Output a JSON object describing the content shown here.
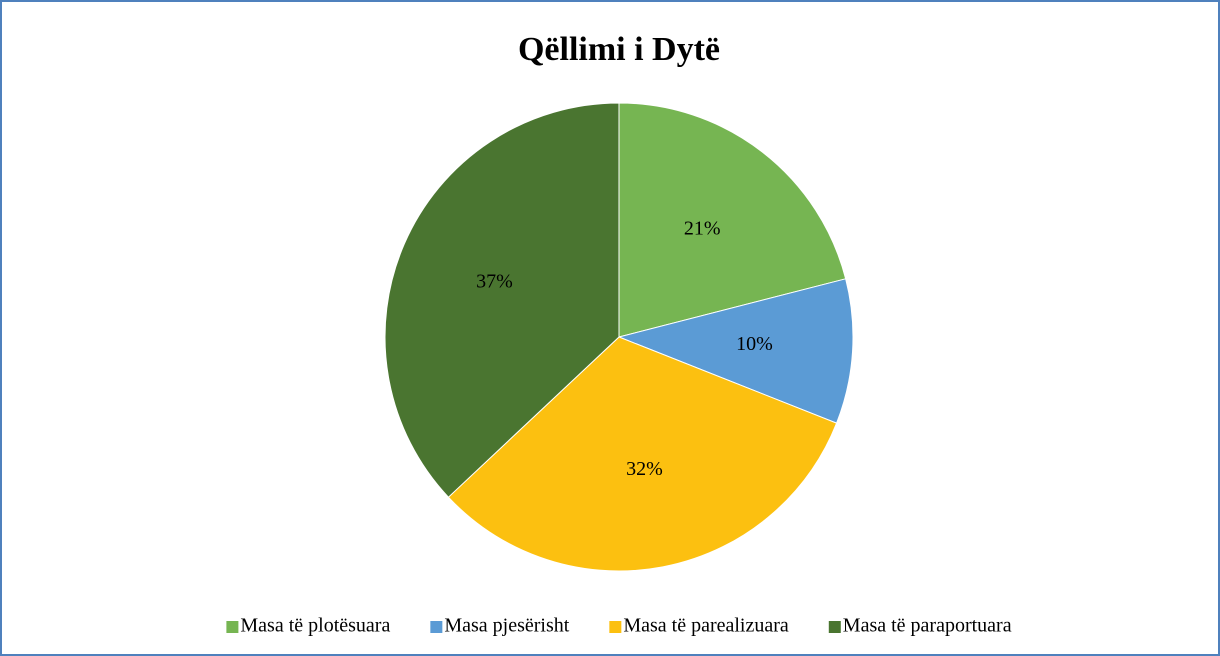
{
  "chart_data": {
    "type": "pie",
    "title": "Qëllimi i Dytë",
    "categories": [
      "Masa të plotësuara",
      "Masa pjesërisht",
      "Masa të parealizuara",
      "Masa të paraportuara"
    ],
    "values": [
      21,
      10,
      32,
      37
    ],
    "value_labels": [
      "21%",
      "10%",
      "32%",
      "37%"
    ],
    "colors": [
      "#76b552",
      "#5b9bd5",
      "#fcc010",
      "#4a7530"
    ],
    "legend": "bottom"
  }
}
